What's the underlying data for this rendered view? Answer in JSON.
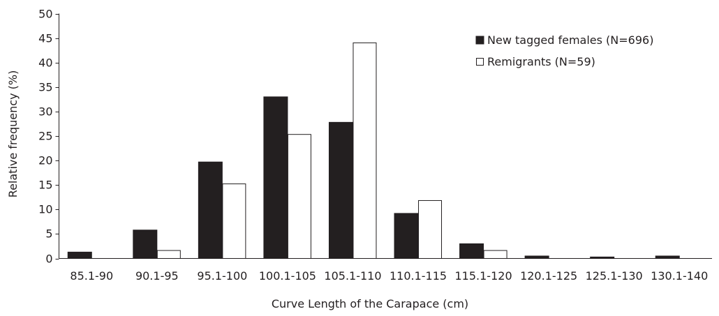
{
  "chart_data": {
    "type": "bar",
    "xlabel": "Curve Length of the Carapace (cm)",
    "ylabel": "Relative frequency (%)",
    "ylim": [
      0,
      50
    ],
    "yticks": [
      "0",
      "5",
      "10",
      "15",
      "20",
      "25",
      "30",
      "35",
      "40",
      "45",
      "50"
    ],
    "grid": false,
    "legend_position": "top-right",
    "categories": [
      "85.1-90",
      "90.1-95",
      "95.1-100",
      "100.1-105",
      "105.1-110",
      "110.1-115",
      "115.1-120",
      "120.1-125",
      "125.1-130",
      "130.1-140"
    ],
    "series": [
      {
        "name": "New tagged females (N=696)",
        "color": "#231f20",
        "fill": "solid",
        "values": [
          1.3,
          5.8,
          19.7,
          33.0,
          27.8,
          9.2,
          3.0,
          0.5,
          0.3,
          0.5
        ]
      },
      {
        "name": "Remigrants (N=59)",
        "color": "#ffffff",
        "fill": "outline",
        "values": [
          0,
          1.7,
          15.3,
          25.4,
          44.1,
          11.9,
          1.7,
          0,
          0,
          0
        ]
      }
    ]
  }
}
